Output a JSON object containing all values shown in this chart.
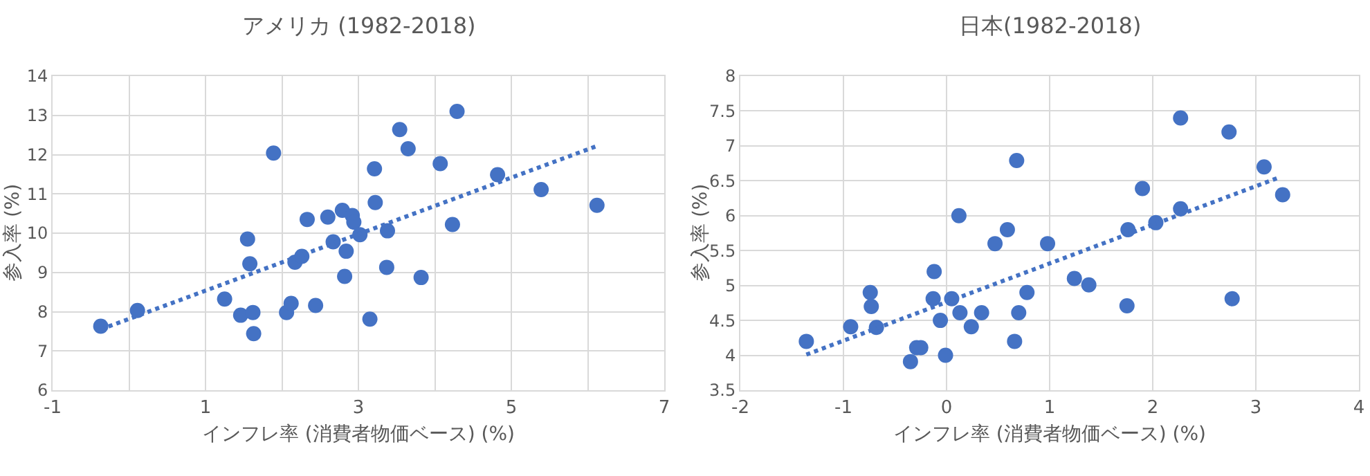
{
  "chart_data": [
    {
      "type": "scatter",
      "title": "アメリカ (1982-2018)",
      "xlabel": "インフレ率 (消費者物価ベース) (%)",
      "ylabel": "参入率 (%)",
      "xlim": [
        -1,
        7
      ],
      "xticks": [
        -1,
        {
          "value": 0,
          "label": null
        },
        1,
        {
          "value": 2,
          "label": null
        },
        3,
        {
          "value": 4,
          "label": null
        },
        5,
        {
          "value": 6,
          "label": null
        },
        7
      ],
      "ylim": [
        6,
        14
      ],
      "yticks": [
        6,
        7,
        8,
        9,
        10,
        11,
        12,
        13,
        14
      ],
      "grid": true,
      "marker": "circle",
      "series": [
        {
          "color": "#4472c4",
          "x": [
            -0.37,
            0.11,
            1.25,
            1.46,
            1.62,
            1.63,
            1.55,
            1.58,
            1.89,
            2.06,
            2.12,
            2.17,
            2.26,
            2.33,
            2.44,
            2.6,
            2.67,
            2.79,
            2.82,
            2.84,
            2.92,
            2.94,
            3.02,
            3.15,
            3.21,
            3.22,
            3.37,
            3.38,
            3.54,
            3.65,
            3.82,
            4.07,
            4.23,
            4.29,
            4.82,
            5.39,
            6.12
          ],
          "values": [
            7.63,
            8.03,
            8.32,
            7.91,
            7.98,
            7.44,
            9.85,
            9.22,
            12.04,
            7.98,
            8.21,
            9.26,
            9.41,
            10.35,
            8.16,
            10.41,
            9.78,
            10.58,
            8.9,
            9.54,
            10.45,
            10.28,
            9.96,
            7.81,
            11.64,
            10.78,
            9.13,
            10.06,
            12.64,
            12.15,
            8.87,
            11.77,
            10.22,
            13.1,
            11.49,
            11.11,
            10.71
          ]
        },
        {
          "type": "line",
          "color": "#4472c4",
          "line_style": "dotted",
          "marker": "none",
          "x": [
            -0.37,
            6.12
          ],
          "values": [
            7.55,
            12.22
          ]
        }
      ]
    },
    {
      "type": "scatter",
      "title": "日本(1982-2018)",
      "xlabel": "インフレ率 (消費者物価ベース) (%)",
      "ylabel": "参入率 (%)",
      "xlim": [
        -2,
        4
      ],
      "xticks": [
        -2,
        -1,
        0,
        1,
        2,
        3,
        4
      ],
      "ylim": [
        3.5,
        8
      ],
      "yticks": [
        3.5,
        4,
        4.5,
        5,
        5.5,
        6,
        6.5,
        7,
        7.5,
        8
      ],
      "grid": true,
      "marker": "circle",
      "series": [
        {
          "color": "#4472c4",
          "x": [
            -1.36,
            -0.93,
            -0.74,
            -0.73,
            -0.68,
            -0.35,
            -0.29,
            -0.25,
            -0.13,
            -0.12,
            -0.06,
            -0.01,
            0.05,
            0.12,
            0.13,
            0.24,
            0.34,
            0.47,
            0.59,
            0.66,
            0.68,
            0.7,
            0.78,
            0.98,
            1.24,
            1.38,
            1.75,
            1.76,
            1.9,
            2.03,
            2.27,
            2.27,
            2.74,
            2.77,
            3.08,
            3.26
          ],
          "values": [
            4.2,
            4.41,
            4.9,
            4.7,
            4.4,
            3.91,
            4.11,
            4.11,
            4.81,
            5.2,
            4.5,
            4.0,
            4.81,
            6.0,
            4.61,
            4.41,
            4.61,
            5.6,
            5.8,
            4.2,
            6.79,
            4.61,
            4.9,
            5.6,
            5.1,
            5.01,
            4.71,
            5.8,
            6.39,
            5.9,
            6.1,
            7.4,
            7.2,
            4.81,
            6.7,
            6.3
          ]
        },
        {
          "type": "line",
          "color": "#4472c4",
          "line_style": "dotted",
          "marker": "none",
          "x": [
            -1.36,
            3.23
          ],
          "values": [
            4.01,
            6.55
          ]
        }
      ]
    }
  ]
}
